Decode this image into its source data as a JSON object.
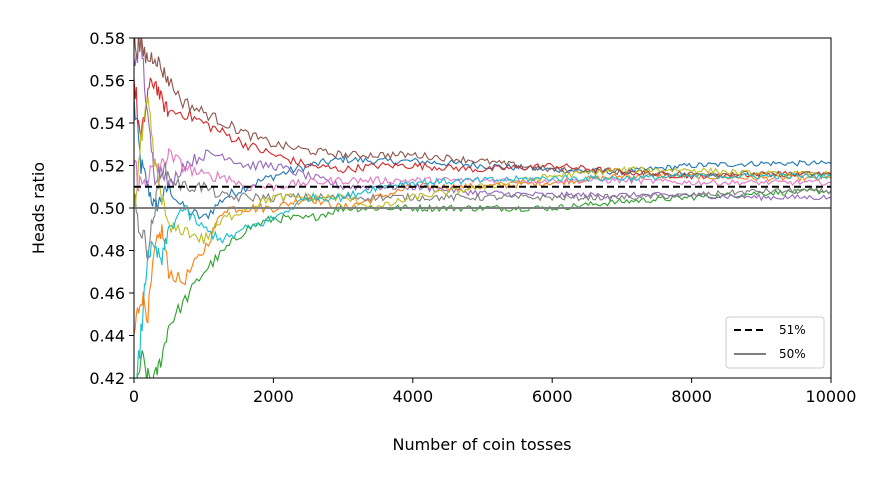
{
  "chart_data": {
    "type": "line",
    "title": "",
    "xlabel": "Number of coin tosses",
    "ylabel": "Heads ratio",
    "xlim": [
      0,
      10000
    ],
    "ylim": [
      0.42,
      0.58
    ],
    "xticks": [
      0,
      2000,
      4000,
      6000,
      8000,
      10000
    ],
    "yticks": [
      0.42,
      0.44,
      0.46,
      0.48,
      0.5,
      0.52,
      0.54,
      0.56,
      0.58
    ],
    "xtick_labels": [
      "0",
      "2000",
      "4000",
      "6000",
      "8000",
      "10000"
    ],
    "ytick_labels": [
      "0.42",
      "0.44",
      "0.46",
      "0.48",
      "0.50",
      "0.52",
      "0.54",
      "0.56",
      "0.58"
    ],
    "grid": false,
    "legend_position": "bottom-right",
    "reference_lines": [
      {
        "name": "51%",
        "y": 0.51,
        "color": "#000000",
        "style": "dashed"
      },
      {
        "name": "50%",
        "y": 0.5,
        "color": "#808080",
        "style": "solid"
      }
    ],
    "x": [
      0,
      100,
      200,
      300,
      400,
      500,
      700,
      1000,
      1300,
      1600,
      2000,
      2500,
      3000,
      3500,
      4000,
      5000,
      6000,
      7000,
      8000,
      9000,
      10000
    ],
    "series": [
      {
        "color": "#1f77b4",
        "values": [
          0.55,
          0.52,
          0.51,
          0.5,
          0.505,
          0.51,
          0.5,
          0.495,
          0.505,
          0.51,
          0.515,
          0.52,
          0.523,
          0.522,
          0.522,
          0.52,
          0.518,
          0.517,
          0.52,
          0.521,
          0.521
        ]
      },
      {
        "color": "#ff7f0e",
        "values": [
          0.44,
          0.46,
          0.45,
          0.48,
          0.49,
          0.47,
          0.465,
          0.48,
          0.5,
          0.5,
          0.5,
          0.505,
          0.5,
          0.505,
          0.51,
          0.51,
          0.512,
          0.515,
          0.515,
          0.514,
          0.514
        ]
      },
      {
        "color": "#2ca02c",
        "values": [
          0.4,
          0.43,
          0.42,
          0.42,
          0.43,
          0.445,
          0.455,
          0.47,
          0.48,
          0.49,
          0.495,
          0.495,
          0.5,
          0.5,
          0.5,
          0.5,
          0.5,
          0.503,
          0.505,
          0.507,
          0.508
        ]
      },
      {
        "color": "#d62728",
        "values": [
          0.56,
          0.53,
          0.555,
          0.56,
          0.55,
          0.545,
          0.545,
          0.54,
          0.535,
          0.53,
          0.525,
          0.52,
          0.518,
          0.52,
          0.52,
          0.518,
          0.52,
          0.517,
          0.515,
          0.516,
          0.516
        ]
      },
      {
        "color": "#9467bd",
        "values": [
          0.57,
          0.58,
          0.54,
          0.515,
          0.52,
          0.51,
          0.52,
          0.525,
          0.525,
          0.52,
          0.52,
          0.515,
          0.51,
          0.51,
          0.51,
          0.507,
          0.506,
          0.506,
          0.506,
          0.505,
          0.505
        ]
      },
      {
        "color": "#8c564b",
        "values": [
          0.58,
          0.575,
          0.57,
          0.572,
          0.565,
          0.56,
          0.55,
          0.545,
          0.54,
          0.535,
          0.53,
          0.527,
          0.525,
          0.525,
          0.525,
          0.522,
          0.518,
          0.517,
          0.516,
          0.516,
          0.516
        ]
      },
      {
        "color": "#e377c2",
        "values": [
          0.52,
          0.51,
          0.515,
          0.52,
          0.52,
          0.525,
          0.52,
          0.515,
          0.515,
          0.51,
          0.51,
          0.512,
          0.513,
          0.513,
          0.513,
          0.513,
          0.513,
          0.513,
          0.512,
          0.512,
          0.512
        ]
      },
      {
        "color": "#7f7f7f",
        "values": [
          0.5,
          0.49,
          0.48,
          0.5,
          0.52,
          0.515,
          0.51,
          0.51,
          0.505,
          0.505,
          0.505,
          0.505,
          0.505,
          0.505,
          0.505,
          0.505,
          0.505,
          0.505,
          0.506,
          0.508,
          0.508
        ]
      },
      {
        "color": "#bcbd22",
        "values": [
          0.5,
          0.53,
          0.55,
          0.52,
          0.505,
          0.49,
          0.49,
          0.485,
          0.495,
          0.5,
          0.505,
          0.505,
          0.505,
          0.5,
          0.505,
          0.51,
          0.515,
          0.518,
          0.518,
          0.516,
          0.516
        ]
      },
      {
        "color": "#17becf",
        "values": [
          0.4,
          0.44,
          0.48,
          0.48,
          0.475,
          0.49,
          0.5,
          0.49,
          0.485,
          0.49,
          0.495,
          0.505,
          0.505,
          0.51,
          0.512,
          0.513,
          0.514,
          0.514,
          0.515,
          0.515,
          0.515
        ]
      }
    ]
  }
}
